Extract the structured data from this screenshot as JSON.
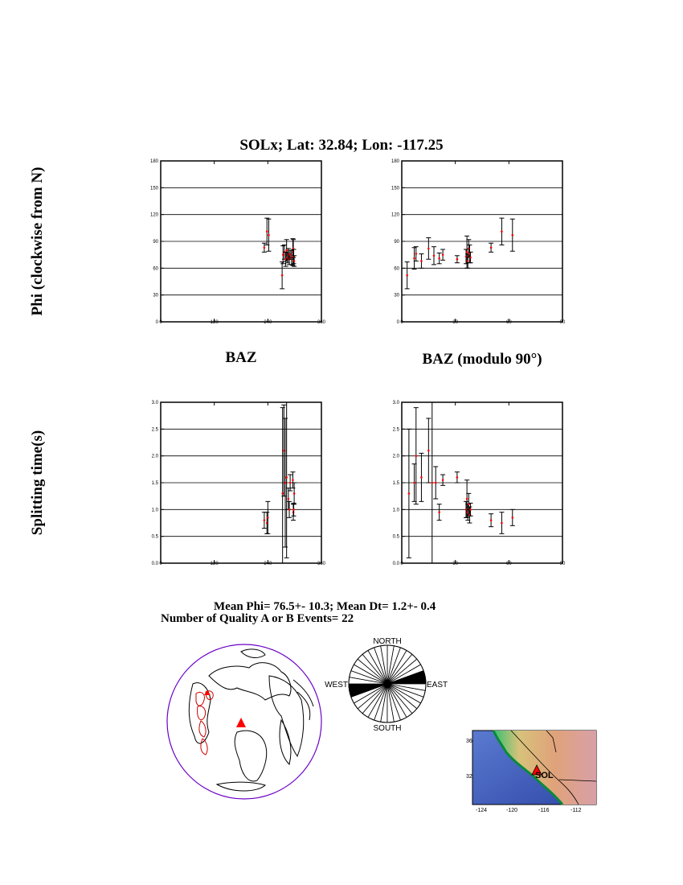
{
  "title": "SOLx; Lat:  32.84;  Lon: -117.25",
  "labels": {
    "phi_ylabel": "Phi (clockwise from N)",
    "dt_ylabel": "Splitting time(s)",
    "baz_xlabel": "BAZ",
    "baz90_xlabel": "BAZ (modulo 90°)"
  },
  "summary": {
    "mean_line": "Mean Phi= 76.5+- 10.3; Mean Dt=  1.2+-  0.4",
    "count_line": "Number of Quality A  or B Events= 22"
  },
  "colors": {
    "point": "#ff0000",
    "bar": "#000000",
    "grid": "#000000",
    "globe_outline": "#6a00c8",
    "station": "#ff0000"
  },
  "chart_data": [
    {
      "type": "scatter",
      "id": "phi_vs_baz",
      "xlabel": "BAZ",
      "ylabel": "Phi (clockwise from N)",
      "xlim": [
        0,
        360
      ],
      "ylim": [
        0,
        180
      ],
      "xticks": [
        0,
        120,
        240,
        360
      ],
      "xtick_labels": [
        "0",
        "120",
        "240",
        "360"
      ],
      "yticks": [
        0,
        30,
        60,
        90,
        120,
        150,
        180
      ],
      "ytick_labels": [
        "0",
        "30",
        "60",
        "90",
        "120",
        "150",
        "180"
      ],
      "grid": "horizontal",
      "points": [
        {
          "x": 232,
          "y": 83,
          "err": 5
        },
        {
          "x": 238,
          "y": 101,
          "err": 15
        },
        {
          "x": 242,
          "y": 97,
          "err": 18
        },
        {
          "x": 272,
          "y": 52,
          "err": 15
        },
        {
          "x": 274,
          "y": 75,
          "err": 10
        },
        {
          "x": 277,
          "y": 78,
          "err": 8
        },
        {
          "x": 280,
          "y": 70,
          "err": 8
        },
        {
          "x": 282,
          "y": 80,
          "err": 12
        },
        {
          "x": 284,
          "y": 72,
          "err": 6
        },
        {
          "x": 286,
          "y": 76,
          "err": 6
        },
        {
          "x": 288,
          "y": 70,
          "err": 6
        },
        {
          "x": 290,
          "y": 75,
          "err": 5
        },
        {
          "x": 293,
          "y": 72,
          "err": 8
        },
        {
          "x": 296,
          "y": 78,
          "err": 15
        },
        {
          "x": 297,
          "y": 82,
          "err": 10
        },
        {
          "x": 298,
          "y": 73,
          "err": 8
        },
        {
          "x": 299,
          "y": 68,
          "err": 6
        }
      ]
    },
    {
      "type": "scatter",
      "id": "phi_vs_baz_mod90",
      "xlabel": "BAZ (modulo 90°)",
      "ylabel": "",
      "xlim": [
        0,
        90
      ],
      "ylim": [
        0,
        180
      ],
      "xticks": [
        0,
        30,
        60,
        90
      ],
      "xtick_labels": [
        "0",
        "30",
        "60",
        "90"
      ],
      "yticks": [
        0,
        30,
        60,
        90,
        120,
        150,
        180
      ],
      "ytick_labels": [
        "0",
        "30",
        "60",
        "90",
        "120",
        "150",
        "180"
      ],
      "grid": "horizontal",
      "points": [
        {
          "x": 3,
          "y": 52,
          "err": 15
        },
        {
          "x": 7,
          "y": 71,
          "err": 12
        },
        {
          "x": 8,
          "y": 76,
          "err": 8
        },
        {
          "x": 11,
          "y": 68,
          "err": 8
        },
        {
          "x": 15,
          "y": 82,
          "err": 12
        },
        {
          "x": 18,
          "y": 74,
          "err": 10
        },
        {
          "x": 21,
          "y": 71,
          "err": 6
        },
        {
          "x": 23,
          "y": 75,
          "err": 6
        },
        {
          "x": 31,
          "y": 70,
          "err": 4
        },
        {
          "x": 36,
          "y": 73,
          "err": 8
        },
        {
          "x": 36.5,
          "y": 78,
          "err": 18
        },
        {
          "x": 37,
          "y": 68,
          "err": 8
        },
        {
          "x": 37.5,
          "y": 82,
          "err": 10
        },
        {
          "x": 38,
          "y": 76,
          "err": 10
        },
        {
          "x": 38.5,
          "y": 72,
          "err": 6
        },
        {
          "x": 50,
          "y": 83,
          "err": 5
        },
        {
          "x": 56,
          "y": 101,
          "err": 15
        },
        {
          "x": 62,
          "y": 97,
          "err": 18
        }
      ]
    },
    {
      "type": "scatter",
      "id": "dt_vs_baz",
      "xlabel": "BAZ",
      "ylabel": "Splitting time(s)",
      "xlim": [
        0,
        360
      ],
      "ylim": [
        0,
        3.0
      ],
      "xticks": [
        0,
        120,
        240,
        360
      ],
      "xtick_labels": [
        "0",
        "120",
        "240",
        "360"
      ],
      "yticks": [
        0,
        0.5,
        1.0,
        1.5,
        2.0,
        2.5,
        3.0
      ],
      "ytick_labels": [
        "0.0",
        "0.5",
        "1.0",
        "1.5",
        "2.0",
        "2.5",
        "3.0"
      ],
      "grid": "horizontal",
      "points": [
        {
          "x": 232,
          "y": 0.8,
          "err": 0.15
        },
        {
          "x": 238,
          "y": 0.75,
          "err": 0.2
        },
        {
          "x": 240,
          "y": 0.85,
          "err": 0.3
        },
        {
          "x": 273,
          "y": 1.3,
          "err": 1.6
        },
        {
          "x": 276,
          "y": 2.1,
          "err": 0.85
        },
        {
          "x": 279,
          "y": 1.5,
          "err": 1.2
        },
        {
          "x": 282,
          "y": 1.6,
          "err": 1.5
        },
        {
          "x": 286,
          "y": 1.2,
          "err": 0.2
        },
        {
          "x": 288,
          "y": 1.0,
          "err": 0.15
        },
        {
          "x": 290,
          "y": 1.5,
          "err": 0.15
        },
        {
          "x": 296,
          "y": 1.55,
          "err": 0.15
        },
        {
          "x": 297,
          "y": 0.95,
          "err": 0.15
        },
        {
          "x": 298,
          "y": 1.0,
          "err": 0.12
        },
        {
          "x": 299,
          "y": 1.3,
          "err": 0.2
        }
      ]
    },
    {
      "type": "scatter",
      "id": "dt_vs_baz_mod90",
      "xlabel": "BAZ (modulo 90°)",
      "ylabel": "",
      "xlim": [
        0,
        90
      ],
      "ylim": [
        0,
        3.0
      ],
      "xticks": [
        0,
        30,
        60,
        90
      ],
      "xtick_labels": [
        "0",
        "30",
        "60",
        "90"
      ],
      "yticks": [
        0,
        0.5,
        1.0,
        1.5,
        2.0,
        2.5,
        3.0
      ],
      "ytick_labels": [
        "0.0",
        "0.5",
        "1.0",
        "1.5",
        "2.0",
        "2.5",
        "3.0"
      ],
      "grid": "horizontal",
      "points": [
        {
          "x": 4,
          "y": 1.3,
          "err": 1.2
        },
        {
          "x": 7,
          "y": 1.5,
          "err": 0.35
        },
        {
          "x": 8,
          "y": 2.0,
          "err": 0.9
        },
        {
          "x": 11,
          "y": 1.6,
          "err": 0.45
        },
        {
          "x": 15,
          "y": 2.1,
          "err": 0.6
        },
        {
          "x": 17,
          "y": 1.5,
          "err": 1.5
        },
        {
          "x": 19,
          "y": 1.5,
          "err": 0.3
        },
        {
          "x": 21,
          "y": 0.95,
          "err": 0.15
        },
        {
          "x": 23,
          "y": 1.55,
          "err": 0.1
        },
        {
          "x": 31,
          "y": 1.6,
          "err": 0.1
        },
        {
          "x": 36,
          "y": 1.0,
          "err": 0.15
        },
        {
          "x": 36.5,
          "y": 1.2,
          "err": 0.35
        },
        {
          "x": 37,
          "y": 0.95,
          "err": 0.15
        },
        {
          "x": 37.5,
          "y": 1.1,
          "err": 0.2
        },
        {
          "x": 38,
          "y": 0.9,
          "err": 0.15
        },
        {
          "x": 38.5,
          "y": 1.0,
          "err": 0.12
        },
        {
          "x": 50,
          "y": 0.8,
          "err": 0.12
        },
        {
          "x": 56,
          "y": 0.75,
          "err": 0.2
        },
        {
          "x": 62,
          "y": 0.85,
          "err": 0.15
        }
      ]
    },
    {
      "type": "rose",
      "id": "phi_rose",
      "labels": {
        "north": "NORTH",
        "south": "SOUTH",
        "east": "EAST",
        "west": "WEST"
      },
      "sector_degrees": 10,
      "filled_azimuths": [
        70,
        80
      ]
    }
  ],
  "globe": {
    "outline_color": "#6a00c8",
    "station_marker": "triangle"
  },
  "regional_map": {
    "station_label": "SOL",
    "lat_ticks": [
      "36",
      "32"
    ],
    "lon_ticks": [
      "-124",
      "-120",
      "-116",
      "-112"
    ]
  }
}
